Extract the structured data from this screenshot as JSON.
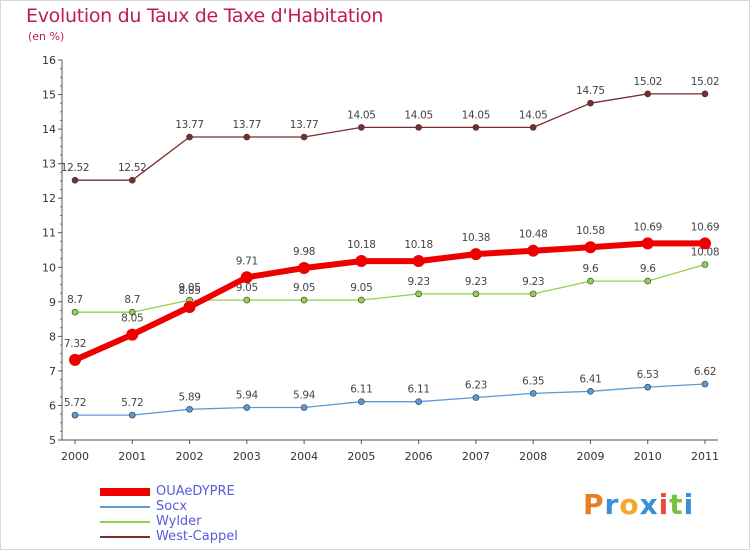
{
  "title": "Evolution du Taux de Taxe d'Habitation",
  "subtitle": "(en %)",
  "logo": "Proxiti",
  "chart_data": {
    "type": "line",
    "x": [
      2000,
      2001,
      2002,
      2003,
      2004,
      2005,
      2006,
      2007,
      2008,
      2009,
      2010,
      2011
    ],
    "ylim": [
      5,
      16
    ],
    "y_ticks": [
      5,
      6,
      7,
      8,
      9,
      10,
      11,
      12,
      13,
      14,
      15,
      16
    ],
    "grid": false,
    "legend_position": "bottom-left",
    "series": [
      {
        "name": "OUAeDYPRE",
        "color": "#ee0000",
        "values": [
          7.32,
          8.05,
          8.85,
          9.71,
          9.98,
          10.18,
          10.18,
          10.38,
          10.48,
          10.58,
          10.69,
          10.69
        ],
        "labels": [
          "7.32",
          "8.05",
          "8.85",
          "9.71",
          "9.98",
          "10.18",
          "10.18",
          "10.38",
          "10.48",
          "10.58",
          "10.69",
          "10.69"
        ]
      },
      {
        "name": "Socx",
        "color": "#5b9bd5",
        "values": [
          5.72,
          5.72,
          5.89,
          5.94,
          5.94,
          6.11,
          6.11,
          6.23,
          6.35,
          6.41,
          6.53,
          6.62
        ],
        "labels": [
          "5.72",
          "5.72",
          "5.89",
          "5.94",
          "5.94",
          "6.11",
          "6.11",
          "6.23",
          "6.35",
          "6.41",
          "6.53",
          "6.62"
        ]
      },
      {
        "name": "Wylder",
        "color": "#92d050",
        "values": [
          8.7,
          8.7,
          9.05,
          9.05,
          9.05,
          9.05,
          9.23,
          9.23,
          9.23,
          9.6,
          9.6,
          10.08
        ],
        "labels": [
          "8.7",
          "8.7",
          "9.05",
          "9.05",
          "9.05",
          "9.05",
          "9.23",
          "9.23",
          "9.23",
          "9.6",
          "9.6",
          "10.08"
        ]
      },
      {
        "name": "West-Cappel",
        "color": "#7b2c2c",
        "values": [
          12.52,
          12.52,
          13.77,
          13.77,
          13.77,
          14.05,
          14.05,
          14.05,
          14.05,
          14.75,
          15.02,
          15.02
        ],
        "labels": [
          "12.52",
          "12.52",
          "13.77",
          "13.77",
          "13.77",
          "14.05",
          "14.05",
          "14.05",
          "14.05",
          "14.75",
          "15.02",
          "15.02"
        ]
      }
    ]
  }
}
